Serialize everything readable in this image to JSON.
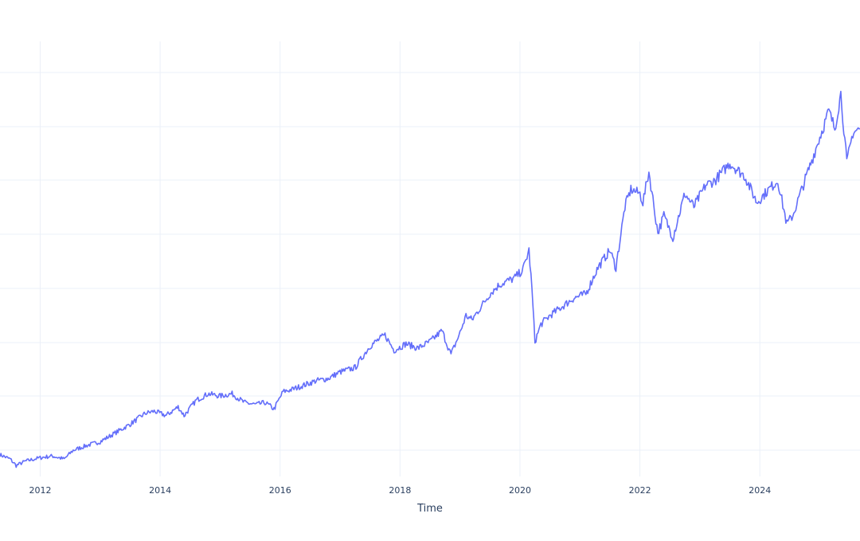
{
  "chart_data": {
    "type": "line",
    "title": "",
    "xlabel": "Time",
    "ylabel": "",
    "grid": true,
    "legend": "none",
    "x_ticks": [
      "2012",
      "2014",
      "2016",
      "2018",
      "2020",
      "2022",
      "2024"
    ],
    "xlim": [
      2011.33,
      2025.67
    ],
    "ylim": [
      0,
      1
    ],
    "y_unit": "relative (0 = bottom of plot area, 1 = top); y-axis tick labels are not visible",
    "series": [
      {
        "color": "#636efa",
        "x": [
          2011.33,
          2011.5,
          2011.6,
          2011.75,
          2011.9,
          2012.0,
          2012.2,
          2012.4,
          2012.55,
          2012.75,
          2013.0,
          2013.25,
          2013.5,
          2013.75,
          2013.9,
          2014.1,
          2014.3,
          2014.4,
          2014.6,
          2014.8,
          2015.0,
          2015.2,
          2015.4,
          2015.6,
          2015.75,
          2015.9,
          2016.05,
          2016.2,
          2016.4,
          2016.6,
          2016.8,
          2017.0,
          2017.25,
          2017.5,
          2017.75,
          2017.9,
          2018.1,
          2018.3,
          2018.5,
          2018.7,
          2018.85,
          2019.0,
          2019.1,
          2019.2,
          2019.35,
          2019.5,
          2019.65,
          2019.8,
          2019.9,
          2020.05,
          2020.15,
          2020.2,
          2020.25,
          2020.35,
          2020.5,
          2020.7,
          2020.9,
          2021.1,
          2021.3,
          2021.5,
          2021.6,
          2021.75,
          2021.85,
          2022.0,
          2022.05,
          2022.15,
          2022.3,
          2022.4,
          2022.55,
          2022.75,
          2022.9,
          2023.1,
          2023.25,
          2023.5,
          2023.75,
          2023.95,
          2024.15,
          2024.3,
          2024.45,
          2024.55,
          2024.65,
          2024.85,
          2025.0,
          2025.15,
          2025.25,
          2025.35,
          2025.45,
          2025.55,
          2025.67
        ],
        "y": [
          0.05,
          0.04,
          0.025,
          0.035,
          0.04,
          0.043,
          0.047,
          0.04,
          0.06,
          0.07,
          0.08,
          0.1,
          0.12,
          0.145,
          0.15,
          0.14,
          0.16,
          0.14,
          0.175,
          0.19,
          0.185,
          0.19,
          0.17,
          0.165,
          0.17,
          0.155,
          0.195,
          0.2,
          0.21,
          0.22,
          0.225,
          0.24,
          0.25,
          0.3,
          0.325,
          0.29,
          0.305,
          0.295,
          0.31,
          0.335,
          0.28,
          0.33,
          0.37,
          0.36,
          0.39,
          0.42,
          0.44,
          0.45,
          0.455,
          0.475,
          0.52,
          0.43,
          0.31,
          0.35,
          0.37,
          0.39,
          0.41,
          0.42,
          0.48,
          0.52,
          0.48,
          0.62,
          0.66,
          0.65,
          0.63,
          0.7,
          0.56,
          0.6,
          0.55,
          0.65,
          0.62,
          0.67,
          0.68,
          0.72,
          0.69,
          0.63,
          0.66,
          0.68,
          0.58,
          0.6,
          0.64,
          0.72,
          0.78,
          0.84,
          0.8,
          0.88,
          0.72,
          0.79,
          0.8
        ]
      }
    ]
  }
}
